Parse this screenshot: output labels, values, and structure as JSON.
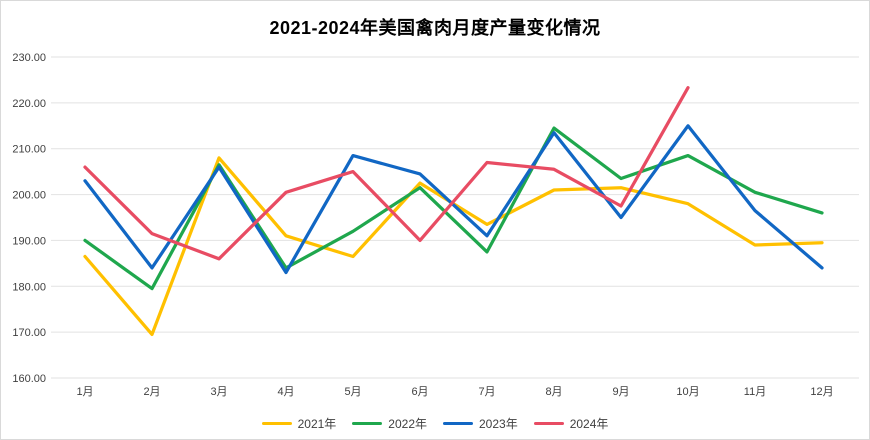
{
  "title": "2021-2024年美国禽肉月度产量变化情况",
  "chart_data": {
    "type": "line",
    "title": "2021-2024年美国禽肉月度产量变化情况",
    "categories": [
      "1月",
      "2月",
      "3月",
      "4月",
      "5月",
      "6月",
      "7月",
      "8月",
      "9月",
      "10月",
      "11月",
      "12月"
    ],
    "series": [
      {
        "name": "2021年",
        "color": "#FFC000",
        "values": [
          186.5,
          169.5,
          208,
          191,
          186.5,
          202.5,
          193.5,
          201,
          201.5,
          198,
          189,
          189.5
        ]
      },
      {
        "name": "2022年",
        "color": "#1FA74D",
        "values": [
          190,
          179.5,
          206.5,
          184,
          192,
          201.5,
          187.5,
          214.5,
          203.5,
          208.5,
          200.5,
          196
        ]
      },
      {
        "name": "2023年",
        "color": "#1167C4",
        "values": [
          203,
          184,
          206,
          183,
          208.5,
          204.5,
          191,
          213.5,
          195,
          215,
          196.5,
          184
        ]
      },
      {
        "name": "2024年",
        "color": "#E84C63",
        "values": [
          206,
          191.5,
          186,
          200.5,
          205,
          190,
          207,
          205.5,
          197.5,
          223.3
        ]
      }
    ],
    "ylim": [
      160,
      230
    ],
    "ytick_step": 10,
    "y_tick_labels": [
      "230.00",
      "220.00",
      "210.00",
      "200.00",
      "190.00",
      "180.00",
      "170.00",
      "160.00"
    ],
    "grid": true,
    "legend_position": "bottom",
    "colors": {
      "gridline": "#e2e2e2",
      "axis_text": "#404040",
      "title_text": "#000000",
      "background": "#ffffff"
    }
  }
}
